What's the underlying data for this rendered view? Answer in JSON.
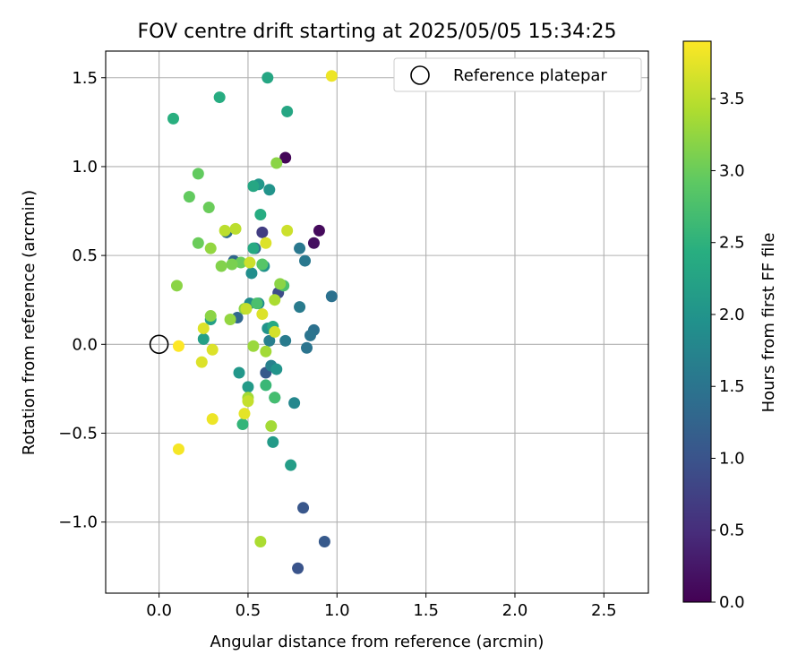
{
  "chart_data": {
    "type": "scatter",
    "title": "FOV centre drift starting at 2025/05/05 15:34:25",
    "xlabel": "Angular distance from reference (arcmin)",
    "ylabel": "Rotation from reference (arcmin)",
    "xlim": [
      -0.3,
      2.75
    ],
    "ylim": [
      -1.4,
      1.65
    ],
    "x_ticks": [
      0.0,
      0.5,
      1.0,
      1.5,
      2.0,
      2.5
    ],
    "x_tick_labels": [
      "0.0",
      "0.5",
      "1.0",
      "1.5",
      "2.0",
      "2.5"
    ],
    "y_ticks": [
      -1.0,
      -0.5,
      0.0,
      0.5,
      1.0,
      1.5
    ],
    "y_tick_labels": [
      "−1.0",
      "−0.5",
      "0.0",
      "0.5",
      "1.0",
      "1.5"
    ],
    "grid": true,
    "legend": {
      "position": "upper-right",
      "entries": [
        "Reference platepar"
      ]
    },
    "reference_point": {
      "x": 0.0,
      "y": 0.0,
      "label": "Reference platepar"
    },
    "colorbar": {
      "label": "Hours from first FF file",
      "range": [
        0.0,
        3.9
      ],
      "ticks": [
        0.0,
        0.5,
        1.0,
        1.5,
        2.0,
        2.5,
        3.0,
        3.5
      ],
      "tick_labels": [
        "0.0",
        "0.5",
        "1.0",
        "1.5",
        "2.0",
        "2.5",
        "3.0",
        "3.5"
      ],
      "colormap": [
        "#440154",
        "#472d7b",
        "#3b528b",
        "#2c728e",
        "#21918c",
        "#28ae80",
        "#5ec962",
        "#addc30",
        "#fde725"
      ]
    },
    "series": [
      {
        "name": "FOV centre drift",
        "x": [
          0.71,
          0.9,
          0.87,
          0.58,
          0.67,
          0.78,
          0.81,
          0.93,
          0.44,
          0.42,
          0.38,
          0.6,
          0.54,
          0.97,
          0.87,
          0.85,
          0.83,
          0.79,
          0.82,
          0.79,
          0.71,
          0.62,
          0.63,
          0.65,
          0.76,
          0.51,
          0.52,
          0.56,
          0.59,
          0.61,
          0.66,
          0.62,
          0.56,
          0.45,
          0.5,
          0.64,
          0.74,
          0.25,
          0.29,
          0.72,
          0.61,
          0.53,
          0.64,
          0.53,
          0.57,
          0.34,
          0.08,
          0.47,
          0.6,
          0.65,
          0.55,
          0.7,
          0.58,
          0.22,
          0.17,
          0.22,
          0.28,
          0.46,
          0.41,
          0.35,
          0.68,
          0.66,
          0.1,
          0.48,
          0.29,
          0.4,
          0.29,
          0.53,
          0.6,
          0.63,
          0.5,
          0.57,
          0.65,
          0.43,
          0.37,
          0.49,
          0.5,
          0.51,
          0.72,
          0.65,
          0.58,
          0.6,
          0.25,
          0.3,
          0.24,
          0.48,
          0.3,
          0.11,
          0.11,
          0.97
        ],
        "y": [
          1.05,
          0.64,
          0.57,
          0.63,
          0.29,
          -1.26,
          -0.92,
          -1.11,
          0.15,
          0.47,
          0.63,
          -0.16,
          0.54,
          0.27,
          0.08,
          0.05,
          -0.02,
          0.54,
          0.47,
          0.21,
          0.02,
          0.02,
          -0.12,
          -0.3,
          -0.33,
          0.23,
          0.4,
          0.23,
          0.44,
          0.09,
          -0.14,
          0.87,
          0.9,
          -0.16,
          -0.24,
          -0.55,
          -0.68,
          0.03,
          0.14,
          1.31,
          1.5,
          0.89,
          0.1,
          0.54,
          0.73,
          1.39,
          1.27,
          -0.45,
          -0.23,
          -0.3,
          0.23,
          0.33,
          0.45,
          0.96,
          0.83,
          0.57,
          0.77,
          0.46,
          0.45,
          0.44,
          0.34,
          1.02,
          0.33,
          0.2,
          0.16,
          0.14,
          0.54,
          -0.01,
          -0.04,
          -0.46,
          -0.3,
          -1.11,
          0.25,
          0.65,
          0.64,
          0.2,
          -0.32,
          0.46,
          0.64,
          0.07,
          0.17,
          0.57,
          0.09,
          -0.03,
          -0.1,
          -0.39,
          -0.42,
          -0.59,
          -0.01,
          1.51
        ],
        "hours": [
          0.05,
          0.1,
          0.15,
          0.7,
          0.9,
          1.0,
          1.05,
          1.1,
          1.3,
          1.3,
          1.35,
          1.1,
          1.4,
          1.45,
          1.45,
          1.5,
          1.5,
          1.55,
          1.55,
          1.6,
          1.6,
          1.65,
          1.7,
          1.75,
          1.8,
          1.85,
          1.9,
          1.9,
          1.95,
          2.0,
          2.0,
          2.0,
          2.05,
          2.05,
          2.1,
          2.1,
          2.15,
          2.2,
          2.2,
          2.3,
          2.3,
          2.3,
          2.35,
          2.35,
          2.4,
          2.4,
          2.45,
          2.55,
          2.6,
          2.7,
          2.75,
          2.75,
          2.85,
          2.95,
          2.95,
          3.0,
          3.0,
          3.0,
          3.1,
          3.15,
          3.2,
          3.2,
          3.2,
          3.2,
          3.2,
          3.25,
          3.25,
          3.3,
          3.35,
          3.35,
          3.35,
          3.4,
          3.4,
          3.5,
          3.5,
          3.55,
          3.55,
          3.6,
          3.6,
          3.65,
          3.7,
          3.7,
          3.7,
          3.7,
          3.7,
          3.75,
          3.8,
          3.85,
          3.9,
          3.8
        ]
      }
    ]
  }
}
